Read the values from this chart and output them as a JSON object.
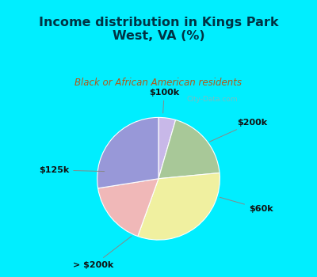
{
  "title": "Income distribution in Kings Park\nWest, VA (%)",
  "subtitle": "Black or African American residents",
  "slices": [
    {
      "label": "$100k",
      "value": 4.5,
      "color": "#c8b8e8"
    },
    {
      "label": "$200k",
      "value": 19.0,
      "color": "#a8c898"
    },
    {
      "label": "$60k",
      "value": 32.0,
      "color": "#f0f0a0"
    },
    {
      "label": "> $200k",
      "value": 17.0,
      "color": "#f0b8b8"
    },
    {
      "label": "$125k",
      "value": 27.5,
      "color": "#9898d8"
    }
  ],
  "bg_color_outer": "#00eeff",
  "bg_color_inner": "#dff0e8",
  "title_color": "#003344",
  "subtitle_color": "#b05818",
  "label_color": "#111111",
  "watermark": "City-Data.com"
}
